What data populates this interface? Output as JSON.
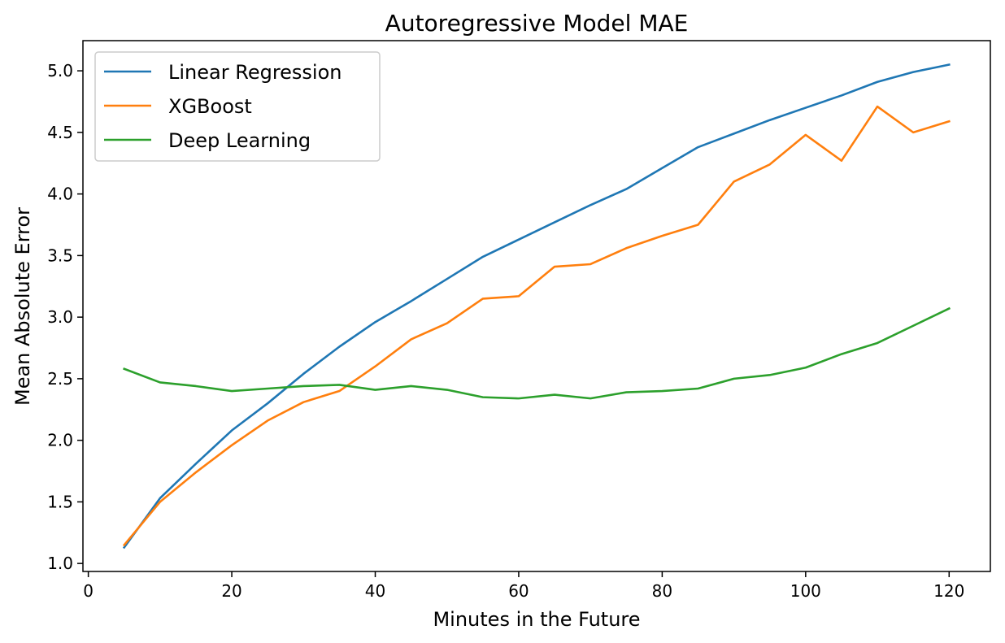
{
  "chart_data": {
    "type": "line",
    "title": "Autoregressive Model MAE",
    "xlabel": "Minutes in the Future",
    "ylabel": "Mean Absolute Error",
    "xlim": [
      -0.75,
      125.75
    ],
    "ylim": [
      0.935,
      5.245
    ],
    "xticks": [
      0,
      20,
      40,
      60,
      80,
      100,
      120
    ],
    "yticks": [
      1.0,
      1.5,
      2.0,
      2.5,
      3.0,
      3.5,
      4.0,
      4.5,
      5.0
    ],
    "ytick_labels": [
      "1.0",
      "1.5",
      "2.0",
      "2.5",
      "3.0",
      "3.5",
      "4.0",
      "4.5",
      "5.0"
    ],
    "grid": false,
    "legend_position": "top-left",
    "x": [
      5,
      10,
      15,
      20,
      25,
      30,
      35,
      40,
      45,
      50,
      55,
      60,
      65,
      70,
      75,
      80,
      85,
      90,
      95,
      100,
      105,
      110,
      115,
      120
    ],
    "series": [
      {
        "name": "Linear Regression",
        "color": "#1f77b4",
        "values": [
          1.13,
          1.53,
          1.81,
          2.08,
          2.3,
          2.54,
          2.76,
          2.96,
          3.13,
          3.31,
          3.49,
          3.63,
          3.77,
          3.91,
          4.04,
          4.21,
          4.38,
          4.49,
          4.6,
          4.7,
          4.8,
          4.91,
          4.99,
          5.05
        ]
      },
      {
        "name": "XGBoost",
        "color": "#ff7f0e",
        "values": [
          1.15,
          1.5,
          1.74,
          1.96,
          2.16,
          2.31,
          2.4,
          2.6,
          2.82,
          2.95,
          3.15,
          3.17,
          3.41,
          3.43,
          3.56,
          3.66,
          3.75,
          4.1,
          4.24,
          4.48,
          4.27,
          4.71,
          4.5,
          4.59
        ]
      },
      {
        "name": "Deep Learning",
        "color": "#2ca02c",
        "values": [
          2.58,
          2.47,
          2.44,
          2.4,
          2.42,
          2.44,
          2.45,
          2.41,
          2.44,
          2.41,
          2.35,
          2.34,
          2.37,
          2.34,
          2.39,
          2.4,
          2.42,
          2.5,
          2.53,
          2.59,
          2.7,
          2.79,
          2.93,
          3.07
        ]
      }
    ]
  }
}
